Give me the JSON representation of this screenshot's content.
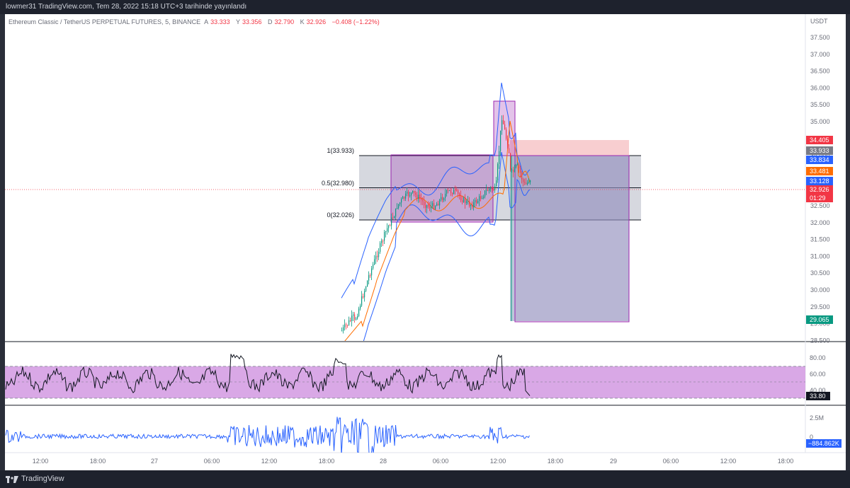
{
  "header": {
    "published": "lowmer31 TradingView.com, Tem 28, 2022 15:18 UTC+3 tarihinde yayınlandı"
  },
  "symbol": {
    "name": "Ethereum Classic / TetherUS PERPETUAL FUTURES, 5, BINANCE",
    "open_label": "A",
    "open": "33.333",
    "high_label": "Y",
    "high": "33.356",
    "low_label": "D",
    "low": "32.790",
    "close_label": "K",
    "close": "32.926",
    "change": "−0.408 (−1.22%)"
  },
  "price_axis": {
    "currency": "USDT",
    "ticks": [
      "37.500",
      "37.000",
      "36.500",
      "36.000",
      "35.500",
      "35.000",
      "34.500",
      "34.000",
      "33.500",
      "33.000",
      "32.500",
      "32.000",
      "31.500",
      "31.000",
      "30.500",
      "30.000",
      "29.500",
      "29.000",
      "28.500"
    ]
  },
  "price_badges": [
    {
      "text": "34.405",
      "color": "#f23645"
    },
    {
      "text": "33.933",
      "color": "#787b86"
    },
    {
      "text": "33.834",
      "color": "#2962ff"
    },
    {
      "text": "33.481",
      "color": "#ff6d00"
    },
    {
      "text": "33.128",
      "color": "#2962ff"
    },
    {
      "text": "32.926",
      "color": "#f23645"
    },
    {
      "text": "01:29",
      "color": "#f23645"
    },
    {
      "text": "29.065",
      "color": "#089981"
    }
  ],
  "fib_levels": [
    {
      "label": "1(33.933)"
    },
    {
      "label": "0.5(32.980)"
    },
    {
      "label": "0(32.026)"
    }
  ],
  "rsi": {
    "ticks": [
      "80.00",
      "60.00",
      "40.00"
    ],
    "value": "33.80"
  },
  "volume": {
    "ticks": [
      "2.5M",
      "0"
    ],
    "value": "−884.862K"
  },
  "time_axis": {
    "ticks": [
      "12:00",
      "18:00",
      "27",
      "06:00",
      "12:00",
      "18:00",
      "28",
      "06:00",
      "12:00",
      "18:00",
      "29",
      "06:00",
      "12:00",
      "18:00"
    ]
  },
  "footer": {
    "brand": "TradingView"
  },
  "colors": {
    "rsi_band": "#d9a8e6",
    "short_profit": "#b9c6d9",
    "short_stop": "#f7c5c8",
    "bollinger": "#2962ff",
    "ema": "#ff6d00"
  }
}
